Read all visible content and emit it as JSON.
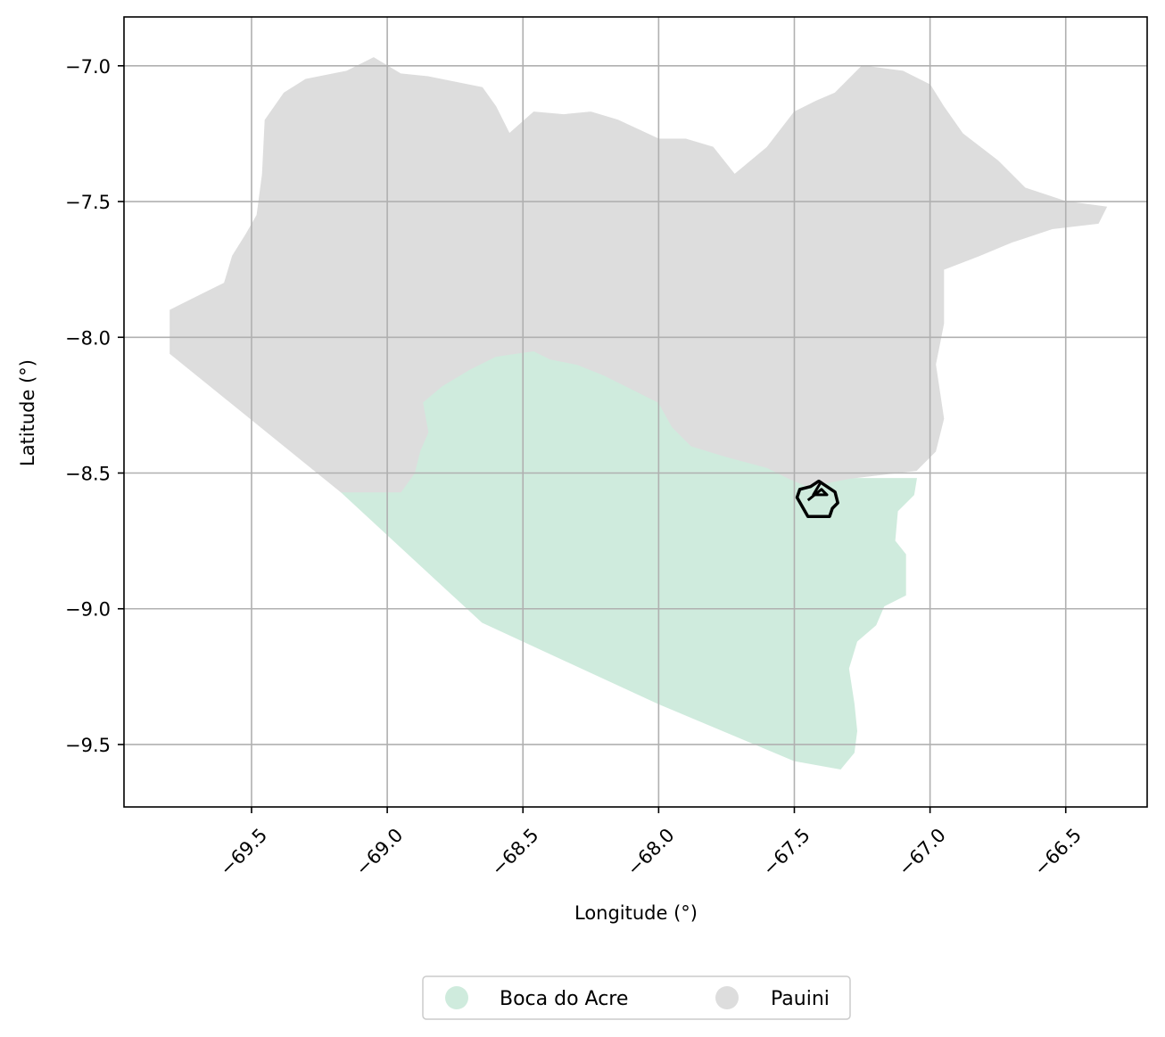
{
  "chart_data": {
    "type": "map",
    "xlabel": "Longitude (°)",
    "ylabel": "Latitude (°)",
    "xlim": [
      -69.97,
      -66.2
    ],
    "ylim": [
      -9.73,
      -6.82
    ],
    "xticks": [
      {
        "value": -69.5,
        "label": "−69.5"
      },
      {
        "value": -69.0,
        "label": "−69.0"
      },
      {
        "value": -68.5,
        "label": "−68.5"
      },
      {
        "value": -68.0,
        "label": "−68.0"
      },
      {
        "value": -67.5,
        "label": "−67.5"
      },
      {
        "value": -67.0,
        "label": "−67.0"
      },
      {
        "value": -66.5,
        "label": "−66.5"
      }
    ],
    "yticks": [
      {
        "value": -7.0,
        "label": "−7.0"
      },
      {
        "value": -7.5,
        "label": "−7.5"
      },
      {
        "value": -8.0,
        "label": "−8.0"
      },
      {
        "value": -8.5,
        "label": "−8.5"
      },
      {
        "value": -9.0,
        "label": "−9.0"
      },
      {
        "value": -9.5,
        "label": "−9.5"
      }
    ],
    "grid": true,
    "legend_position": "bottom-center",
    "regions": [
      {
        "name": "Boca do Acre",
        "color": "#cfebdd",
        "boundary": [
          [
            -69.17,
            -8.57
          ],
          [
            -68.95,
            -8.57
          ],
          [
            -68.9,
            -8.5
          ],
          [
            -68.88,
            -8.42
          ],
          [
            -68.85,
            -8.35
          ],
          [
            -68.87,
            -8.24
          ],
          [
            -68.8,
            -8.18
          ],
          [
            -68.7,
            -8.12
          ],
          [
            -68.6,
            -8.07
          ],
          [
            -68.53,
            -8.06
          ],
          [
            -68.46,
            -8.05
          ],
          [
            -68.4,
            -8.08
          ],
          [
            -68.3,
            -8.1
          ],
          [
            -68.2,
            -8.14
          ],
          [
            -68.1,
            -8.19
          ],
          [
            -68.0,
            -8.24
          ],
          [
            -67.95,
            -8.33
          ],
          [
            -67.88,
            -8.4
          ],
          [
            -67.75,
            -8.44
          ],
          [
            -67.6,
            -8.48
          ],
          [
            -67.52,
            -8.52
          ],
          [
            -67.45,
            -8.55
          ],
          [
            -67.3,
            -8.52
          ],
          [
            -67.05,
            -8.52
          ],
          [
            -67.06,
            -8.58
          ],
          [
            -67.12,
            -8.64
          ],
          [
            -67.13,
            -8.75
          ],
          [
            -67.09,
            -8.8
          ],
          [
            -67.09,
            -8.95
          ],
          [
            -67.17,
            -8.99
          ],
          [
            -67.2,
            -9.06
          ],
          [
            -67.27,
            -9.12
          ],
          [
            -67.3,
            -9.22
          ],
          [
            -67.28,
            -9.35
          ],
          [
            -67.27,
            -9.45
          ],
          [
            -67.28,
            -9.53
          ],
          [
            -67.33,
            -9.59
          ],
          [
            -67.5,
            -9.56
          ],
          [
            -68.0,
            -9.35
          ],
          [
            -68.65,
            -9.05
          ],
          [
            -69.17,
            -8.57
          ]
        ]
      },
      {
        "name": "Pauini",
        "color": "#dddddd",
        "boundary": [
          [
            -69.8,
            -8.06
          ],
          [
            -69.8,
            -7.9
          ],
          [
            -69.7,
            -7.85
          ],
          [
            -69.6,
            -7.8
          ],
          [
            -69.57,
            -7.7
          ],
          [
            -69.52,
            -7.62
          ],
          [
            -69.48,
            -7.55
          ],
          [
            -69.46,
            -7.4
          ],
          [
            -69.45,
            -7.2
          ],
          [
            -69.38,
            -7.1
          ],
          [
            -69.3,
            -7.05
          ],
          [
            -69.15,
            -7.02
          ],
          [
            -69.05,
            -6.97
          ],
          [
            -68.95,
            -7.03
          ],
          [
            -68.85,
            -7.04
          ],
          [
            -68.75,
            -7.06
          ],
          [
            -68.65,
            -7.08
          ],
          [
            -68.6,
            -7.15
          ],
          [
            -68.55,
            -7.25
          ],
          [
            -68.46,
            -7.17
          ],
          [
            -68.35,
            -7.18
          ],
          [
            -68.25,
            -7.17
          ],
          [
            -68.15,
            -7.2
          ],
          [
            -68.0,
            -7.27
          ],
          [
            -67.9,
            -7.27
          ],
          [
            -67.8,
            -7.3
          ],
          [
            -67.72,
            -7.4
          ],
          [
            -67.6,
            -7.3
          ],
          [
            -67.5,
            -7.17
          ],
          [
            -67.42,
            -7.13
          ],
          [
            -67.35,
            -7.1
          ],
          [
            -67.25,
            -7.0
          ],
          [
            -67.1,
            -7.02
          ],
          [
            -67.0,
            -7.07
          ],
          [
            -66.95,
            -7.15
          ],
          [
            -66.88,
            -7.25
          ],
          [
            -66.75,
            -7.35
          ],
          [
            -66.65,
            -7.45
          ],
          [
            -66.5,
            -7.5
          ],
          [
            -66.35,
            -7.52
          ],
          [
            -66.38,
            -7.58
          ],
          [
            -66.55,
            -7.6
          ],
          [
            -66.7,
            -7.65
          ],
          [
            -66.82,
            -7.7
          ],
          [
            -66.95,
            -7.75
          ],
          [
            -66.95,
            -7.95
          ],
          [
            -66.98,
            -8.1
          ],
          [
            -66.95,
            -8.3
          ],
          [
            -66.98,
            -8.42
          ],
          [
            -67.05,
            -8.49
          ],
          [
            -67.3,
            -8.52
          ],
          [
            -67.45,
            -8.55
          ],
          [
            -67.52,
            -8.52
          ],
          [
            -67.6,
            -8.48
          ],
          [
            -67.75,
            -8.44
          ],
          [
            -67.88,
            -8.4
          ],
          [
            -67.95,
            -8.33
          ],
          [
            -68.0,
            -8.24
          ],
          [
            -68.1,
            -8.19
          ],
          [
            -68.2,
            -8.14
          ],
          [
            -68.3,
            -8.1
          ],
          [
            -68.4,
            -8.08
          ],
          [
            -68.46,
            -8.05
          ],
          [
            -68.53,
            -8.06
          ],
          [
            -68.6,
            -8.07
          ],
          [
            -68.7,
            -8.12
          ],
          [
            -68.8,
            -8.18
          ],
          [
            -68.87,
            -8.24
          ],
          [
            -68.85,
            -8.35
          ],
          [
            -68.88,
            -8.42
          ],
          [
            -68.9,
            -8.5
          ],
          [
            -68.95,
            -8.57
          ],
          [
            -69.17,
            -8.57
          ],
          [
            -69.8,
            -8.06
          ]
        ]
      }
    ],
    "outline": {
      "color": "#000000",
      "boundary": [
        [
          -67.48,
          -8.56
        ],
        [
          -67.44,
          -8.55
        ],
        [
          -67.41,
          -8.53
        ],
        [
          -67.38,
          -8.55
        ],
        [
          -67.35,
          -8.57
        ],
        [
          -67.34,
          -8.61
        ],
        [
          -67.36,
          -8.63
        ],
        [
          -67.37,
          -8.66
        ],
        [
          -67.41,
          -8.66
        ],
        [
          -67.45,
          -8.66
        ],
        [
          -67.49,
          -8.59
        ],
        [
          -67.48,
          -8.56
        ]
      ],
      "inner": [
        [
          -67.45,
          -8.6
        ],
        [
          -67.4,
          -8.56
        ],
        [
          -67.38,
          -8.58
        ],
        [
          -67.43,
          -8.58
        ],
        [
          -67.4,
          -8.53
        ]
      ]
    },
    "legend": [
      {
        "label": "Boca do Acre",
        "color": "#cfebdd"
      },
      {
        "label": "Pauini",
        "color": "#dddddd"
      }
    ]
  }
}
